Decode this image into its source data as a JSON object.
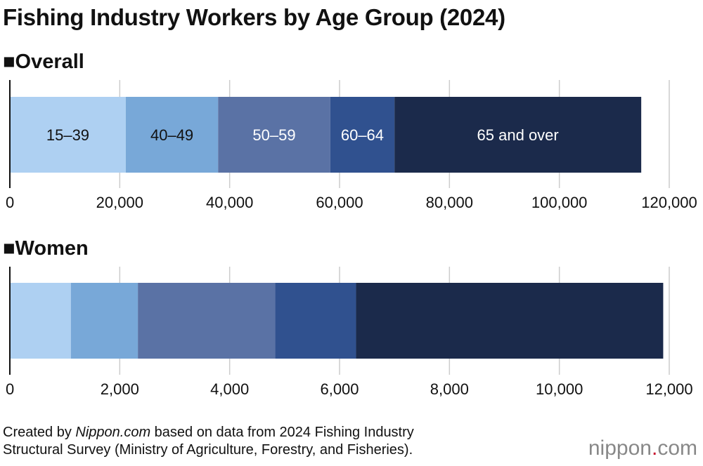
{
  "title": "Fishing Industry Workers by Age Group (2024)",
  "chart_data": [
    {
      "type": "bar",
      "orientation": "horizontal-stacked",
      "title": "■Overall",
      "categories": [
        "15–39",
        "40–49",
        "50–59",
        "60–64",
        "65 and over"
      ],
      "values": [
        21100,
        16800,
        20400,
        11700,
        44900
      ],
      "xlim": [
        0,
        120000
      ],
      "ticks": [
        "0",
        "20,000",
        "40,000",
        "60,000",
        "80,000",
        "100,000",
        "120,000"
      ],
      "tick_values": [
        0,
        20000,
        40000,
        60000,
        80000,
        100000,
        120000
      ],
      "grid": true,
      "show_segment_labels": true
    },
    {
      "type": "bar",
      "orientation": "horizontal-stacked",
      "title": "■Women",
      "categories": [
        "15–39",
        "40–49",
        "50–59",
        "60–64",
        "65 and over"
      ],
      "values": [
        1110,
        1220,
        2500,
        1470,
        5590
      ],
      "xlim": [
        0,
        12000
      ],
      "ticks": [
        "0",
        "2,000",
        "4,000",
        "6,000",
        "8,000",
        "10,000",
        "12,000"
      ],
      "tick_values": [
        0,
        2000,
        4000,
        6000,
        8000,
        10000,
        12000
      ],
      "grid": true,
      "show_segment_labels": false
    }
  ],
  "colors": [
    "#aed0f2",
    "#78a8d8",
    "#5a72a5",
    "#30518f",
    "#1b2a4b"
  ],
  "label_colors": [
    "#111111",
    "#111111",
    "#ffffff",
    "#ffffff",
    "#ffffff"
  ],
  "footer": {
    "prefix": "Created by ",
    "source_site": "Nippon.com",
    "suffix": " based on data from 2024 Fishing Industry",
    "line2": "Structural Survey (Ministry of Agriculture, Forestry, and Fisheries)."
  },
  "logo": {
    "text": "nippon",
    "dot": ".",
    "tld": "com"
  }
}
